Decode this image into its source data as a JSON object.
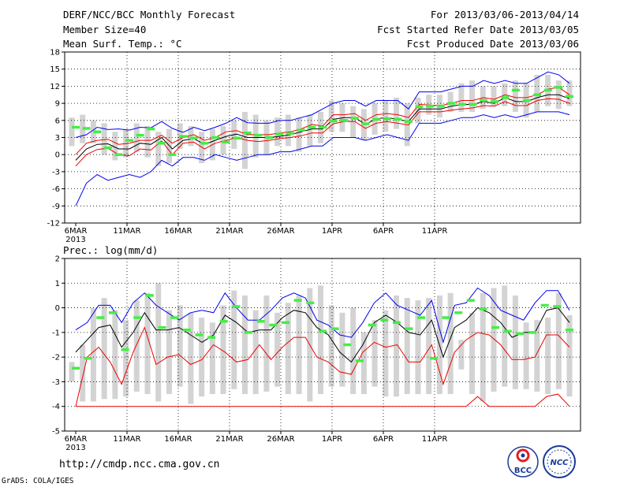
{
  "header": {
    "title": "DERF/NCC/BCC Monthly Forecast",
    "member_size": "Member Size=40",
    "variable": "Mean Surf. Temp.: °C",
    "period": "For 2013/03/06-2013/04/14",
    "started": "Fcst Started Refer Date 2013/03/05",
    "produced": "Fcst Produced Date 2013/03/06"
  },
  "footer": {
    "url": "http://cmdp.ncc.cma.gov.cn",
    "grads": "GrADS: COLA/IGES",
    "logo_bcc": "BCC",
    "logo_ncc": "NCC"
  },
  "colors": {
    "bar": "#d3d3d3",
    "mean": "#44ee44",
    "blue": "#0000ee",
    "black": "#000000",
    "red": "#ee0000",
    "grid": "#000000"
  },
  "chart_data": [
    {
      "type": "line",
      "title": "Mean Surf. Temp.: °C",
      "ylim": [
        -12,
        18
      ],
      "yticks": [
        -12,
        -9,
        -6,
        -3,
        0,
        3,
        6,
        9,
        12,
        15,
        18
      ],
      "xtick_labels": [
        "6MAR",
        "11MAR",
        "16MAR",
        "21MAR",
        "26MAR",
        "1APR",
        "6APR",
        "11APR"
      ],
      "xtick_sub": "2013",
      "days": 40,
      "box_low": [
        1.5,
        2,
        2,
        0,
        -1,
        -0.5,
        0.5,
        -0.5,
        -2,
        -1.5,
        1,
        1.5,
        -1.5,
        -1,
        0,
        1,
        -2.5,
        -0.5,
        0,
        1.5,
        1.5,
        0.5,
        1.5,
        2,
        4,
        4,
        3,
        2.5,
        3.5,
        4,
        4.5,
        1.5,
        5.5,
        7,
        6.5,
        7.5,
        7.5,
        7.5,
        8,
        8.5,
        8.5,
        7.5,
        6.5,
        7.5,
        8.5,
        8,
        8.5
      ],
      "box_high": [
        6.5,
        7,
        6,
        5.5,
        4,
        4.5,
        5.5,
        5,
        4,
        4.5,
        5.5,
        5,
        4,
        4.5,
        5,
        6,
        7.5,
        7,
        6,
        6.5,
        7,
        6.5,
        7,
        7.5,
        9.5,
        9,
        8.5,
        8,
        9,
        9.5,
        10,
        9,
        10,
        10.5,
        10.5,
        11,
        12.5,
        13,
        12,
        12,
        12.5,
        13,
        12.5,
        14,
        14,
        13,
        13
      ],
      "series": [
        {
          "name": "max",
          "color": "#0000ee",
          "values": [
            3,
            3.5,
            4.8,
            4.4,
            4.5,
            4.3,
            4.8,
            4.7,
            5.8,
            4.6,
            3.9,
            4.8,
            4.2,
            4.8,
            5.5,
            6.5,
            5.6,
            5.5,
            5.5,
            6,
            6,
            6.5,
            7,
            8,
            9,
            9.5,
            9.5,
            8.5,
            9.5,
            9.5,
            9.5,
            8,
            11,
            11,
            11,
            11.5,
            12,
            12,
            13,
            12.5,
            13,
            12.5,
            12.5,
            13.5,
            14.5,
            14,
            12.5
          ]
        },
        {
          "name": "p75",
          "color": "#ee0000",
          "values": [
            0,
            2,
            2.5,
            2.7,
            1.8,
            2,
            2.5,
            2.5,
            3.4,
            2,
            3,
            3.5,
            2.5,
            3,
            4,
            4.2,
            3.5,
            3.5,
            3.5,
            3.8,
            4,
            4.5,
            5.3,
            5,
            7,
            7,
            7.2,
            6,
            7,
            7.2,
            7,
            6.5,
            8.8,
            8.7,
            8.6,
            9,
            9.5,
            9.5,
            10,
            9.7,
            10.5,
            10,
            10,
            10.5,
            11.5,
            11.8,
            10.5
          ]
        },
        {
          "name": "mean",
          "color": "#000000",
          "values": [
            -1,
            1,
            1.8,
            1.9,
            1,
            1,
            2,
            1.8,
            3,
            1,
            2.5,
            2.8,
            1.8,
            2.5,
            3.2,
            3.6,
            3,
            3,
            3,
            3.2,
            3.5,
            4,
            4.5,
            4.5,
            6.2,
            6.5,
            6.5,
            5.3,
            6.3,
            6.5,
            6.2,
            5.8,
            8,
            8,
            8,
            8.5,
            8.8,
            8.8,
            9.3,
            9,
            10,
            9.3,
            9.3,
            10,
            10.5,
            10.5,
            9.8
          ]
        },
        {
          "name": "p25",
          "color": "#ee0000",
          "values": [
            -2,
            0,
            0.9,
            1.1,
            0,
            -0.2,
            1,
            0.8,
            2.4,
            0,
            2,
            2.2,
            1,
            2,
            2.5,
            3,
            2.5,
            2.3,
            2.5,
            2.8,
            3,
            3.3,
            3.8,
            3.8,
            5.4,
            5.8,
            5.8,
            4.6,
            5.5,
            5.8,
            5.5,
            5.2,
            7.5,
            7.5,
            7.5,
            7.8,
            8,
            8.2,
            8.6,
            8.5,
            9.3,
            8.6,
            8.6,
            9.5,
            9.8,
            9.7,
            9
          ]
        },
        {
          "name": "min",
          "color": "#0000ee",
          "values": [
            -9,
            -5,
            -3.5,
            -4.5,
            -4,
            -3.5,
            -4,
            -3,
            -1,
            -2,
            -0.5,
            -0.5,
            -1,
            0,
            -0.5,
            -1,
            -0.5,
            0,
            0,
            0.5,
            0.5,
            1,
            1.5,
            1.5,
            3,
            3,
            3,
            2.5,
            3,
            3.5,
            3,
            2.5,
            5.5,
            5.5,
            5.5,
            6,
            6.5,
            6.5,
            7,
            6.5,
            7,
            6.5,
            7,
            7.5,
            7.5,
            7.5,
            7
          ]
        },
        {
          "name": "member_mean",
          "color": "#44ee44",
          "style": "dash",
          "values": [
            4.8,
            4.6,
            4,
            1.2,
            0,
            2.5,
            3.4,
            4.5,
            2,
            0,
            3.2,
            2.9,
            2,
            3,
            2.2,
            2.9,
            3.8,
            3.4,
            3,
            3.6,
            3.7,
            4.3,
            4.8,
            4.8,
            5.9,
            6,
            6.4,
            5.4,
            6.2,
            6.3,
            6.2,
            5.8,
            8.4,
            8.5,
            8.5,
            9,
            8.8,
            8.8,
            9.5,
            9.3,
            10,
            11.3,
            9.5,
            10.5,
            11.3,
            11.8,
            10.2
          ]
        }
      ]
    },
    {
      "type": "line",
      "title": "Prec.: log(mm/d)",
      "ylim": [
        -5,
        2
      ],
      "yticks": [
        -5,
        -4,
        -3,
        -2,
        -1,
        0,
        1,
        2
      ],
      "xtick_labels": [
        "6MAR",
        "11MAR",
        "16MAR",
        "21MAR",
        "26MAR",
        "1APR",
        "6APR",
        "11APR"
      ],
      "xtick_sub": "2013",
      "days": 40,
      "box_low": [
        -3,
        -3.8,
        -3.8,
        -3.7,
        -3.7,
        -3.6,
        -3.4,
        -3.5,
        -3.8,
        -3.5,
        -3.2,
        -3.9,
        -3.6,
        -3.5,
        -3.5,
        -3.3,
        -3.5,
        -3.5,
        -3.4,
        -3.2,
        -3.5,
        -3.5,
        -3.8,
        -3.5,
        -3.2,
        -3.2,
        -3.5,
        -3.5,
        -3.2,
        -3.6,
        -3.6,
        -3.5,
        -3.5,
        -3.5,
        -3.5,
        -3.5,
        -2.5,
        -3.5,
        -3.8,
        -3.4,
        -3.2,
        -3.3,
        -3.3,
        -3.4,
        -3.5,
        -3.3,
        -3.6
      ],
      "box_high": [
        -2.2,
        -1.5,
        0,
        0.4,
        -0.1,
        -0.5,
        0.3,
        0.6,
        1,
        -0.1,
        0.1,
        -0.2,
        -0.4,
        -0.6,
        0.1,
        0.7,
        0.5,
        -0.1,
        0.5,
        -0.2,
        0.2,
        0.5,
        0.8,
        0.9,
        0.1,
        -0.2,
        0,
        -1,
        -0.5,
        -0.1,
        0.5,
        0.4,
        0.3,
        0.4,
        0.5,
        0.6,
        -1.3,
        -0.2,
        0.6,
        0.8,
        0.9,
        0.5,
        -0.6,
        -0.5,
        -0.4,
        0.6,
        -0.3
      ],
      "series": [
        {
          "name": "max",
          "color": "#0000ee",
          "values": [
            -0.9,
            -0.6,
            0.1,
            0.1,
            -0.6,
            0.2,
            0.6,
            0.1,
            -0.2,
            -0.5,
            -0.2,
            -0.1,
            -0.2,
            0.6,
            0,
            -0.5,
            -0.5,
            -0.1,
            0.4,
            0.6,
            0.4,
            -0.5,
            -0.7,
            -1.1,
            -1.2,
            -0.6,
            0.2,
            0.6,
            0.1,
            -0.1,
            -0.3,
            0.3,
            -1.4,
            0.1,
            0.2,
            0.8,
            0.5,
            -0.1,
            -0.3,
            -0.5,
            0.2,
            0.7,
            0.7,
            -0.1
          ]
        },
        {
          "name": "mean",
          "color": "#000000",
          "values": [
            -1.8,
            -1.3,
            -0.8,
            -0.7,
            -1.6,
            -1,
            -0.2,
            -0.9,
            -0.9,
            -0.8,
            -1.1,
            -1.4,
            -1.1,
            -0.3,
            -0.6,
            -1,
            -0.9,
            -0.9,
            -0.4,
            -0.1,
            -0.2,
            -0.8,
            -1.1,
            -1.8,
            -2.2,
            -1.5,
            -0.6,
            -0.3,
            -0.6,
            -1,
            -1.1,
            -0.5,
            -2,
            -0.8,
            -0.5,
            0,
            -0.2,
            -0.6,
            -1.2,
            -1,
            -1,
            -0.1,
            0,
            -0.6
          ]
        },
        {
          "name": "p25",
          "color": "#ee0000",
          "values": [
            -4,
            -2,
            -1.6,
            -2.2,
            -3.1,
            -1.8,
            -0.8,
            -2.3,
            -2,
            -1.9,
            -2.3,
            -2.1,
            -1.5,
            -1.8,
            -2.2,
            -2.1,
            -1.5,
            -2.1,
            -1.6,
            -1.2,
            -1.2,
            -2,
            -2.2,
            -2.6,
            -2.7,
            -1.8,
            -1.4,
            -1.6,
            -1.5,
            -2.2,
            -2.2,
            -1.5,
            -3.1,
            -1.8,
            -1.3,
            -1,
            -1.1,
            -1.5,
            -2.1,
            -2.1,
            -2,
            -1.1,
            -1.1,
            -1.6
          ]
        },
        {
          "name": "min",
          "color": "#ee0000",
          "values": [
            -4,
            -4,
            -4,
            -4,
            -4,
            -4,
            -4,
            -4,
            -4,
            -4,
            -4,
            -4,
            -4,
            -4,
            -4,
            -4,
            -4,
            -4,
            -4,
            -4,
            -4,
            -4,
            -4,
            -4,
            -4,
            -4,
            -4,
            -4,
            -4,
            -4,
            -4,
            -4,
            -4,
            -4,
            -4,
            -3.6,
            -4,
            -4,
            -4,
            -4,
            -4,
            -3.6,
            -3.5,
            -4
          ]
        },
        {
          "name": "member_mean",
          "color": "#44ee44",
          "style": "dash",
          "values": [
            -2.45,
            -2.05,
            -0.4,
            -0.2,
            -1.7,
            -0.4,
            0.5,
            -0.8,
            -0.4,
            -0.9,
            -1.1,
            -1.2,
            -0.55,
            0.05,
            -1,
            -0.55,
            -0.7,
            -0.6,
            0.3,
            0.2,
            -0.95,
            -0.85,
            -1.5,
            -2.15,
            -0.7,
            -0.5,
            -0.6,
            -0.85,
            -0.4,
            -2.05,
            -0.4,
            -0.2,
            0.3,
            -0.05,
            -0.8,
            -0.95,
            -1.05,
            -1,
            0.1,
            0.05,
            -0.9
          ]
        }
      ]
    }
  ]
}
